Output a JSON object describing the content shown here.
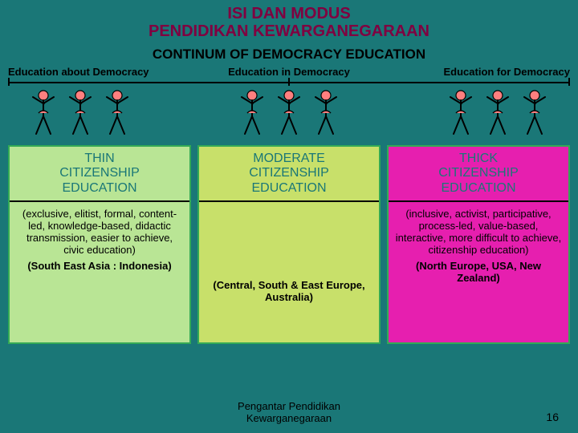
{
  "title_line1": "ISI DAN MODUS",
  "title_line2": "PENDIDIKAN KEWARGANEGARAAN",
  "subtitle": "CONTINUM OF DEMOCRACY EDUCATION",
  "headings": {
    "left": "Education about Democracy",
    "center": "Education in Democracy",
    "right": "Education for Democracy"
  },
  "columns": {
    "thin": {
      "title_l1": "THIN",
      "title_l2": "CITIZENSHIP",
      "title_l3": "EDUCATION",
      "desc": "(exclusive, elitist, formal, content-led, knowledge-based, didactic transmission, easier to achieve, civic education)",
      "region": "(South East Asia :  Indonesia)"
    },
    "moderate": {
      "title_l1": "MODERATE",
      "title_l2": "CITIZENSHIP",
      "title_l3": "EDUCATION",
      "desc": "",
      "region": "(Central, South & East Europe, Australia)"
    },
    "thick": {
      "title_l1": "THICK",
      "title_l2": "CITIZENSHIP",
      "title_l3": "EDUCATION",
      "desc": "(inclusive, activist, participative, process-led, value-based, interactive, more difficult to achieve, citizenship education)",
      "region": "(North Europe, USA, New Zealand)"
    }
  },
  "footer": {
    "text_l1": "Pengantar Pendidikan",
    "text_l2": "Kewarganegaraan",
    "page": "16"
  },
  "style": {
    "bg": "#1a7777",
    "title_color": "#800040",
    "col_colors": {
      "thin": "#b9e595",
      "moderate": "#c8e06a",
      "thick": "#e61faf"
    },
    "col_border": "#3a5",
    "dancer_fill": "#ff7f7f",
    "dancer_stroke": "#000000"
  }
}
